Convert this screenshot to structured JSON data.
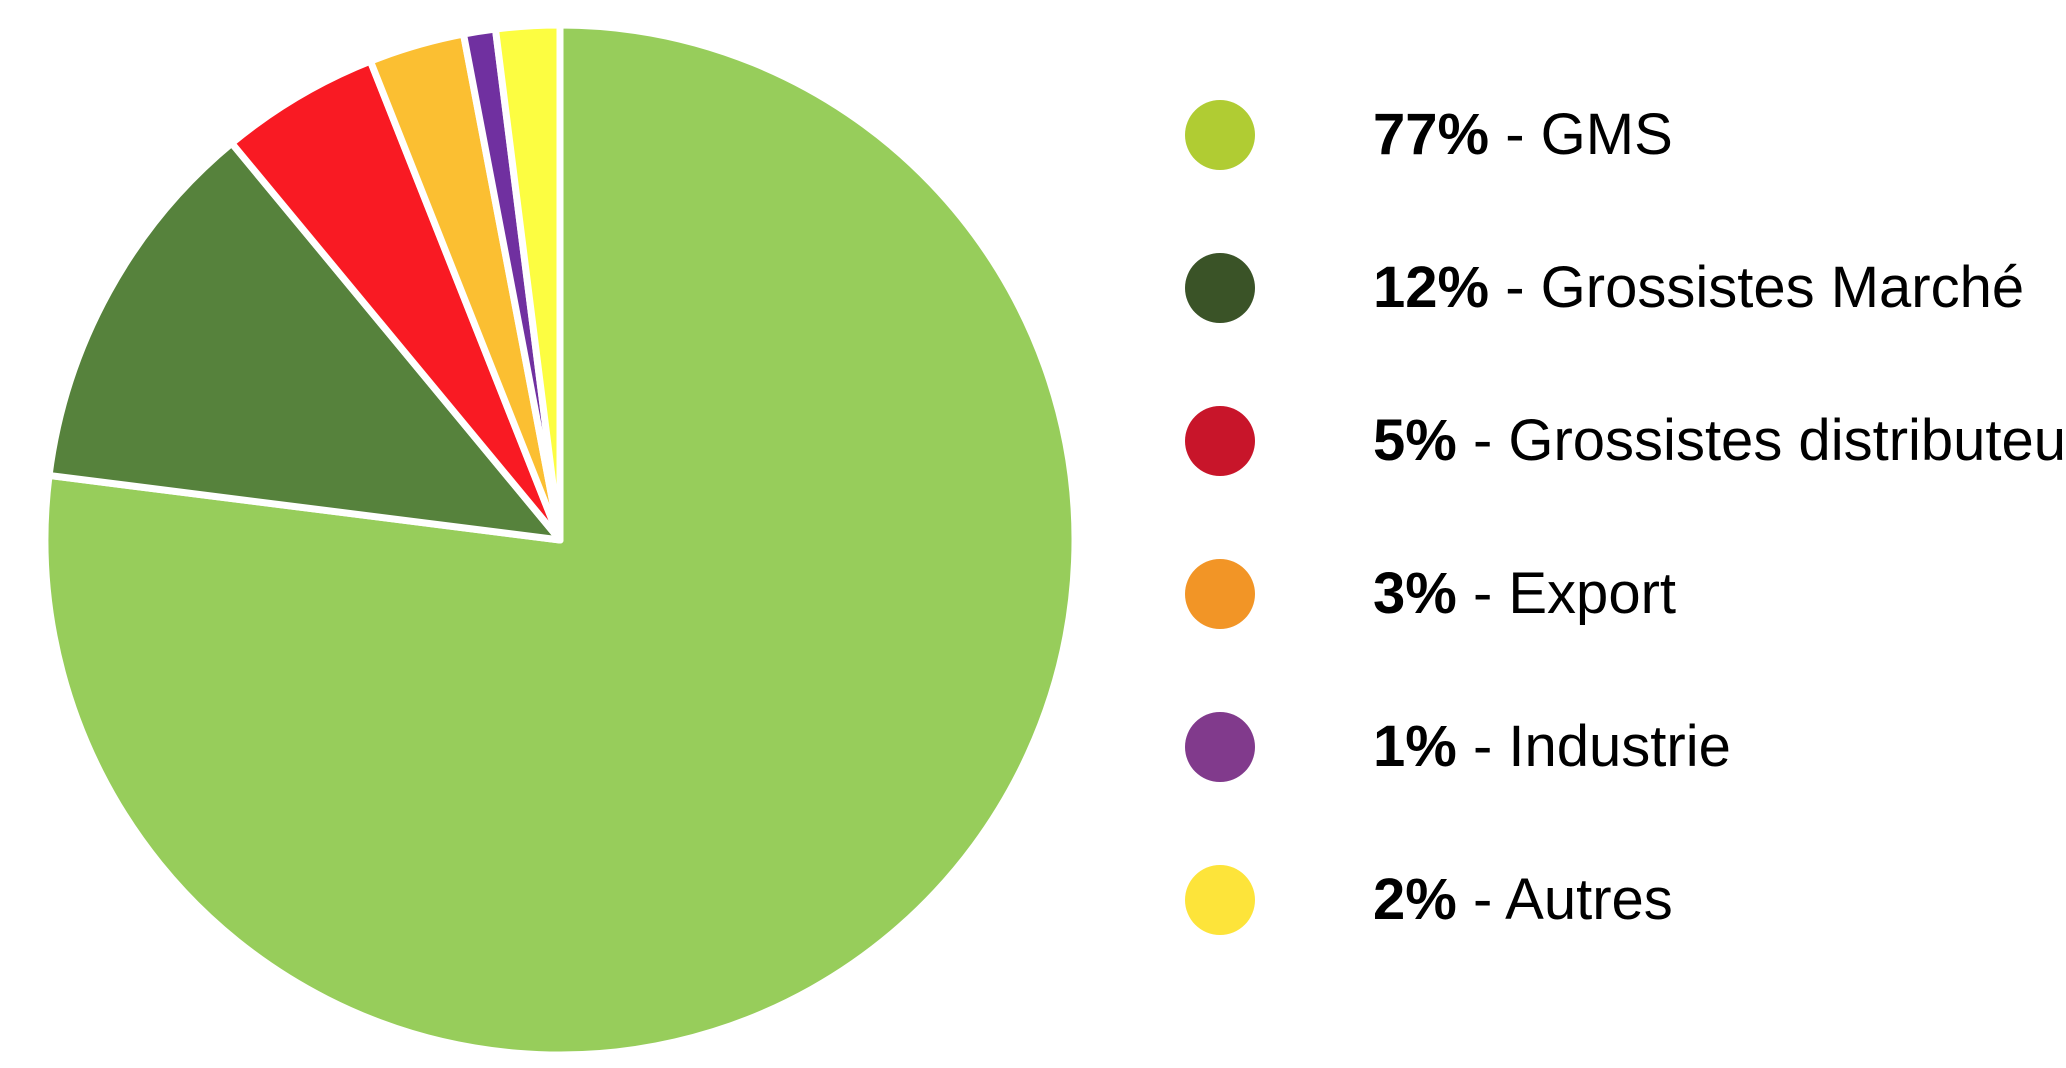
{
  "chart_data": {
    "type": "pie",
    "title": "",
    "start_angle_deg": 0,
    "direction": "clockwise",
    "slices": [
      {
        "value": 77,
        "percent_label": "77%",
        "label": "GMS",
        "pie_color": "#97CD5B",
        "legend_color": "#B0CC33"
      },
      {
        "value": 12,
        "percent_label": "12%",
        "label": "Grossistes Marché",
        "pie_color": "#56823C",
        "legend_color": "#3A5327"
      },
      {
        "value": 5,
        "percent_label": "5%",
        "label": "Grossistes distributeurs",
        "pie_color": "#F91A23",
        "legend_color": "#C8152A"
      },
      {
        "value": 3,
        "percent_label": "3%",
        "label": "Export",
        "pie_color": "#FBBF32",
        "legend_color": "#F29526"
      },
      {
        "value": 1,
        "percent_label": "1%",
        "label": "Industrie",
        "pie_color": "#7030A0",
        "legend_color": "#813A8C"
      },
      {
        "value": 2,
        "percent_label": "2%",
        "label": "Autres",
        "pie_color": "#FCFD41",
        "legend_color": "#FDE43A"
      }
    ],
    "legend_separator": " - ",
    "legend_placement": "right"
  }
}
